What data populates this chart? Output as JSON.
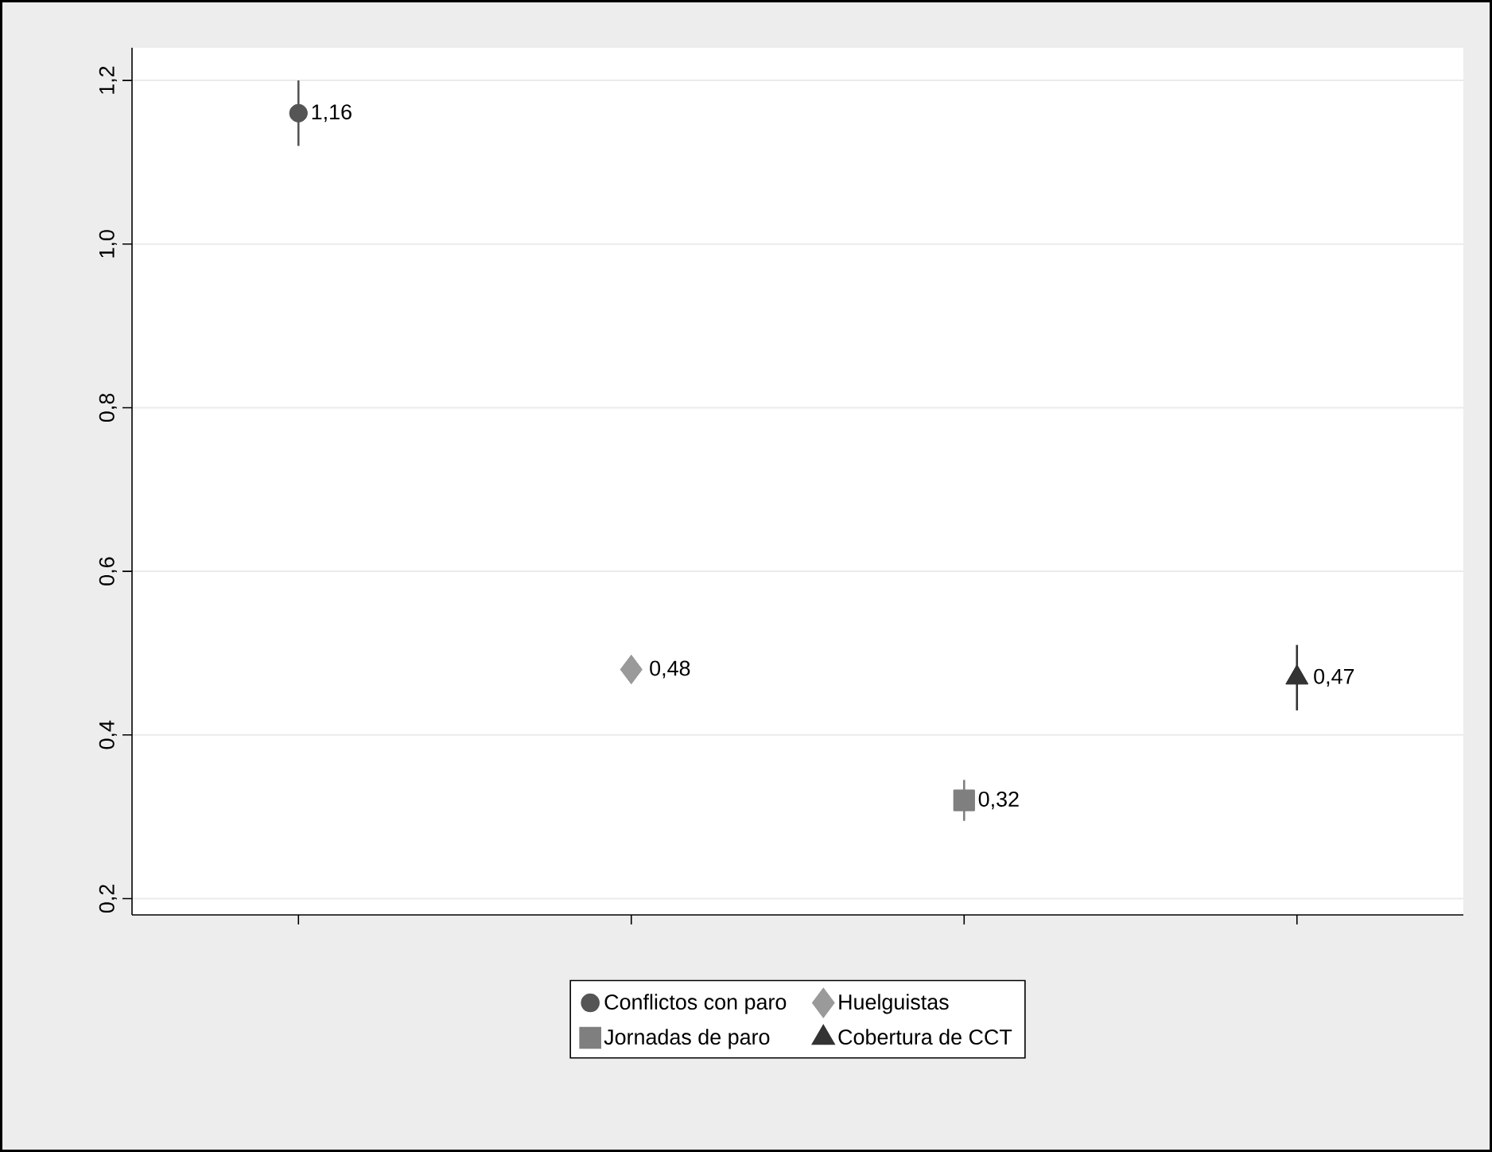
{
  "chart_data": {
    "type": "scatter",
    "categories": [
      null,
      null,
      null,
      null
    ],
    "series": [
      {
        "name": "Conflictos con paro",
        "color": "#555555",
        "marker": "circle",
        "values": [
          1.16,
          null,
          null,
          null
        ],
        "errors": [
          [
            1.12,
            1.2
          ],
          null,
          null,
          null
        ],
        "value_labels": [
          "1,16",
          null,
          null,
          null
        ]
      },
      {
        "name": "Huelguistas",
        "color": "#9a9a9a",
        "marker": "diamond",
        "values": [
          null,
          0.48,
          null,
          null
        ],
        "value_labels": [
          null,
          "0,48",
          null,
          null
        ]
      },
      {
        "name": "Jornadas de paro",
        "color": "#7f7f7f",
        "marker": "square",
        "values": [
          null,
          null,
          0.32,
          null
        ],
        "errors": [
          null,
          null,
          [
            0.295,
            0.345
          ],
          null
        ],
        "value_labels": [
          null,
          null,
          "0,32",
          null
        ]
      },
      {
        "name": "Cobertura de CCT",
        "color": "#333333",
        "marker": "triangle",
        "values": [
          null,
          null,
          null,
          0.47
        ],
        "errors": [
          null,
          null,
          null,
          [
            0.43,
            0.51
          ]
        ],
        "value_labels": [
          null,
          null,
          null,
          "0,47"
        ]
      }
    ],
    "ylim": [
      0.18,
      1.24
    ],
    "yticks": [
      {
        "value": 0.2,
        "label": "0,2"
      },
      {
        "value": 0.4,
        "label": "0,4"
      },
      {
        "value": 0.6,
        "label": "0,6"
      },
      {
        "value": 0.8,
        "label": "0,8"
      },
      {
        "value": 1.0,
        "label": "1,0"
      },
      {
        "value": 1.2,
        "label": "1,2"
      }
    ],
    "grid": "y",
    "legend": "bottom",
    "tick_labels": "y"
  }
}
